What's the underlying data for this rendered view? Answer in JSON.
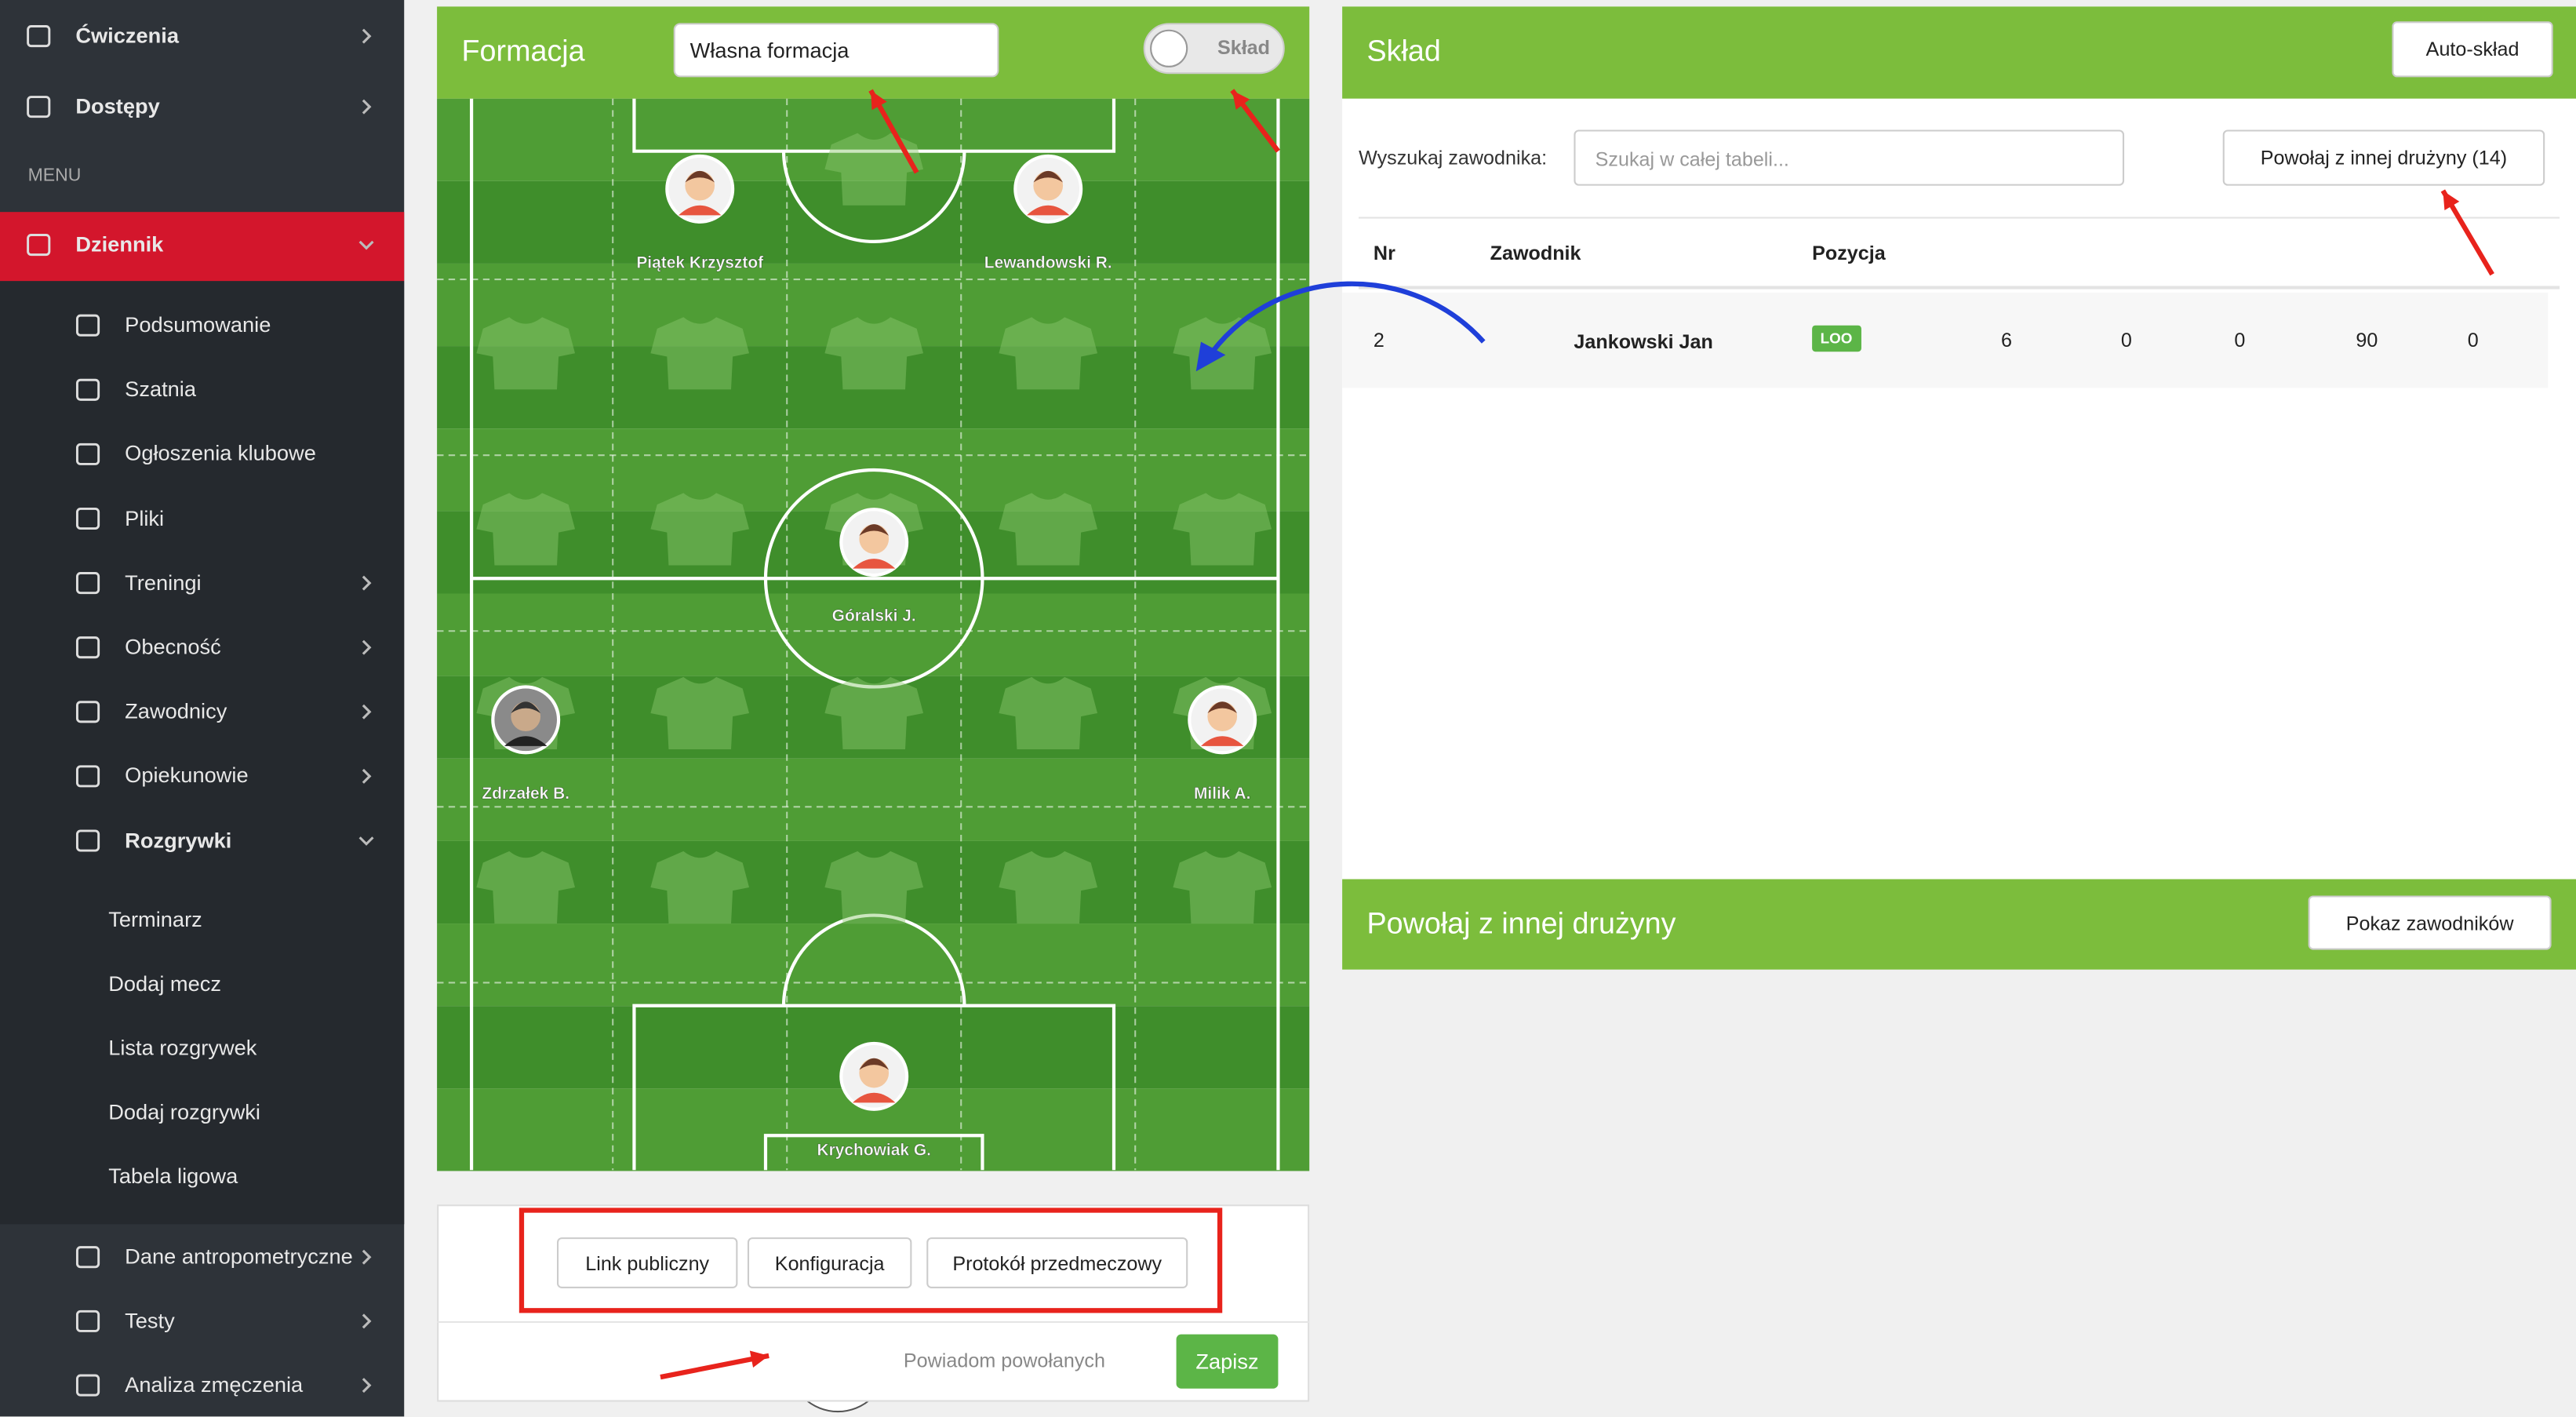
{
  "sidebar": {
    "top": [
      "Ćwiczenia",
      "Dostępy"
    ],
    "section": "MENU",
    "active": "Dziennik",
    "items": [
      "Podsumowanie",
      "Szatnia",
      "Ogłoszenia klubowe",
      "Pliki",
      "Treningi",
      "Obecność",
      "Zawodnicy",
      "Opiekunowie",
      "Rozgrywki"
    ],
    "subitems": [
      "Terminarz",
      "Dodaj mecz",
      "Lista rozgrywek",
      "Dodaj rozgrywki",
      "Tabela ligowa"
    ],
    "bottom": [
      "Dane antropometryczne",
      "Testy",
      "Analiza zmęczenia"
    ]
  },
  "formation": {
    "title": "Formacja",
    "select": "Własna formacja",
    "toggle": "Skład",
    "players": [
      "Piątek Krzysztof",
      "Lewandowski R.",
      "Góralski J.",
      "Zdrzałek B.",
      "Milik A.",
      "Krychowiak G."
    ],
    "buttons": [
      "Link publiczny",
      "Konfiguracja",
      "Protokół przedmeczowy"
    ],
    "notify": "Powiadom powołanych",
    "save": "Zapisz"
  },
  "squad": {
    "title": "Skład",
    "auto": "Auto-skład",
    "search_label": "Wyszukaj zawodnika:",
    "search_placeholder": "Szukaj w całej tabeli...",
    "call_button": "Powołaj z innej drużyny (14)",
    "columns": [
      "Nr",
      "Zawodnik",
      "Pozycja"
    ],
    "rows": [
      [
        2,
        "Jankowski Jan",
        "LOO",
        6,
        0,
        0,
        90,
        0
      ]
    ]
  },
  "call_panel": {
    "title": "Powołaj z innej drużyny",
    "button": "Pokaz zawodników"
  }
}
